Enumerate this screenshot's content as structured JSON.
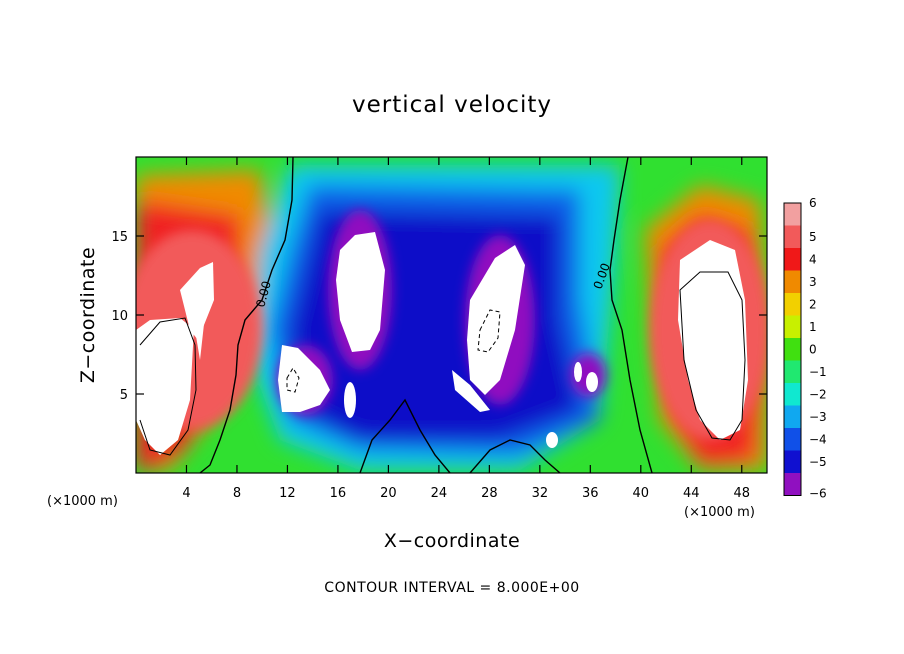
{
  "chart_data": {
    "type": "heatmap",
    "title": "vertical velocity",
    "xlabel": "X−coordinate",
    "ylabel": "Z−coordinate",
    "x_unit": "(×1000 m)",
    "x_unit_right": "(×1000 m)",
    "xlim": [
      0,
      50
    ],
    "ylim": [
      0,
      20
    ],
    "x_ticks": [
      4,
      8,
      12,
      16,
      20,
      24,
      28,
      32,
      36,
      40,
      44,
      48
    ],
    "y_ticks": [
      5,
      10,
      15
    ],
    "colorbar": {
      "levels": [
        6,
        5,
        4,
        3,
        2,
        1,
        0,
        -1,
        -2,
        -3,
        -4,
        -5,
        -6
      ],
      "labels": [
        "6",
        "5",
        "4",
        "3",
        "2",
        "1",
        "0",
        "−1",
        "−2",
        "−3",
        "−4",
        "−5",
        "−6"
      ],
      "colors": [
        "#f2a0a0",
        "#f25a5a",
        "#f01818",
        "#f08a00",
        "#f2d000",
        "#c8f000",
        "#40e010",
        "#20e870",
        "#10e8d0",
        "#10a8f0",
        "#1050e8",
        "#1010d0",
        "#9010c0"
      ]
    },
    "contour_labels": [
      "0.00",
      "0.00"
    ],
    "footer_note": "CONTOUR INTERVAL = 8.000E+00",
    "regions": [
      {
        "x": 2.5,
        "z": 5.5,
        "value": 9,
        "rx": 2.6,
        "rz": 4.8
      },
      {
        "x": 6.5,
        "z": 9.5,
        "value": 7,
        "rx": 2.8,
        "rz": 6.5
      },
      {
        "x": 45.5,
        "z": 8.0,
        "value": 9,
        "rx": 2.6,
        "rz": 5.5
      },
      {
        "x": 46.0,
        "z": 9.5,
        "value": 7,
        "rx": 3.0,
        "rz": 7.0
      },
      {
        "x": 18.3,
        "z": 10.5,
        "value": -9,
        "rx": 1.6,
        "rz": 4.3
      },
      {
        "x": 28.5,
        "z": 9.0,
        "value": -9,
        "rx": 1.8,
        "rz": 4.5
      },
      {
        "x": 12.8,
        "z": 5.5,
        "value": -9,
        "rx": 1.4,
        "rz": 1.8
      },
      {
        "x": 16.5,
        "z": 4.5,
        "value": -8,
        "rx": 0.6,
        "rz": 1.0
      },
      {
        "x": 35.5,
        "z": 6.0,
        "value": -8,
        "rx": 0.9,
        "rz": 1.0
      },
      {
        "x": 34.0,
        "z": 2.0,
        "value": -7,
        "rx": 0.6,
        "rz": 0.6
      }
    ]
  }
}
